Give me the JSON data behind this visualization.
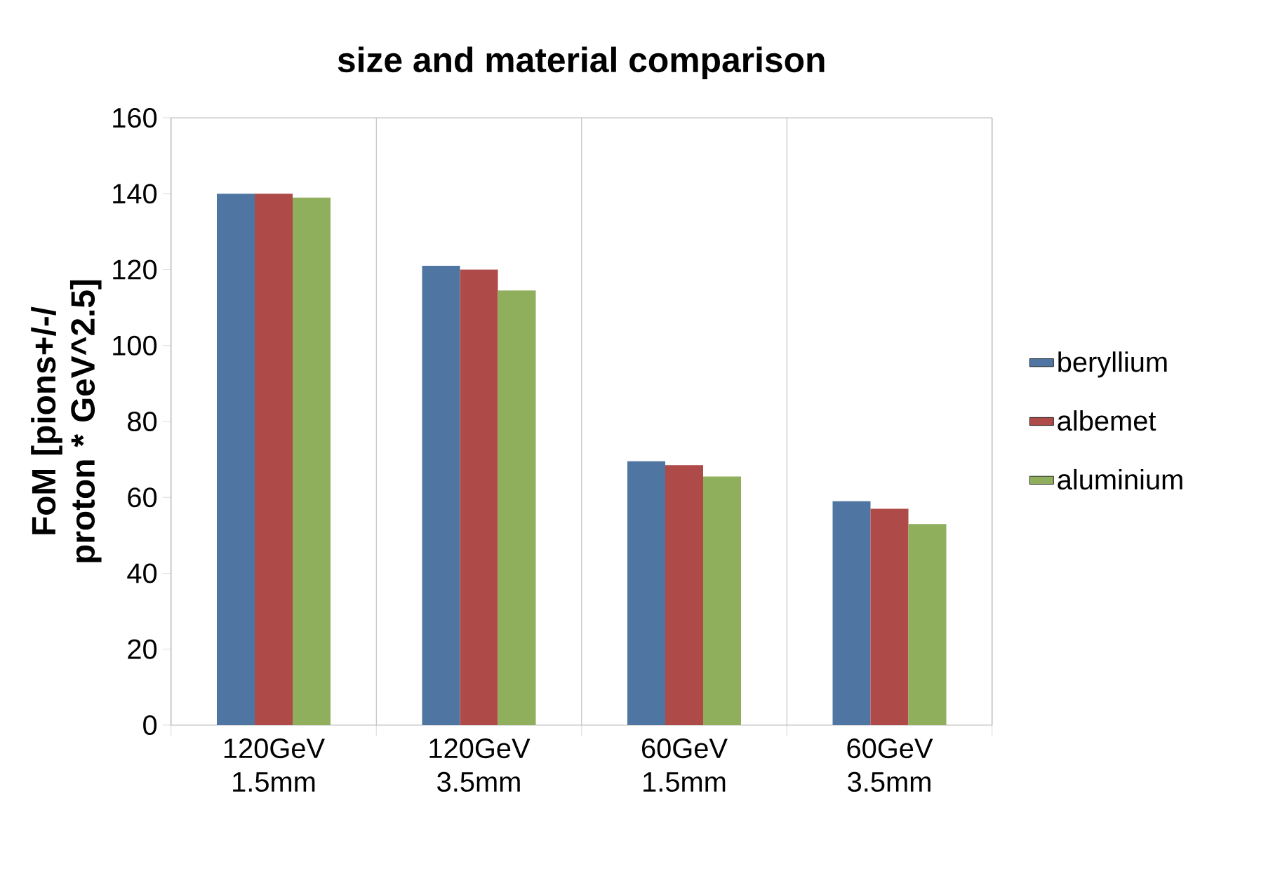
{
  "chart_data": {
    "type": "bar",
    "title": "size and material comparison",
    "ylabel": "FoM [pions+/-/ proton * GeV^2.5]",
    "categories": [
      "120GeV 1.5mm",
      "120GeV 3.5mm",
      "60GeV 1.5mm",
      "60GeV 3.5mm"
    ],
    "series": [
      {
        "name": "beryllium",
        "color": "#4f76a3",
        "values": [
          140,
          121,
          69.5,
          59
        ]
      },
      {
        "name": "albemet",
        "color": "#ae4a48",
        "values": [
          140,
          120,
          68.5,
          57
        ]
      },
      {
        "name": "aluminium",
        "color": "#8faf5c",
        "values": [
          139,
          114.5,
          65.5,
          53
        ]
      }
    ],
    "ylim": [
      0,
      160
    ],
    "yticks": [
      0,
      20,
      40,
      60,
      80,
      100,
      120,
      140,
      160
    ],
    "grid": "x",
    "legend": "right"
  }
}
